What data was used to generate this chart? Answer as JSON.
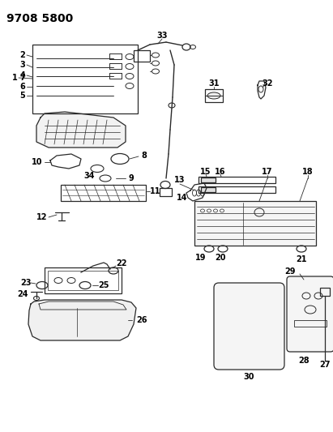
{
  "title": "9708 5800",
  "bg_color": "#ffffff",
  "lc": "#2a2a2a",
  "label_color": "#000000",
  "title_fontsize": 10,
  "label_fontsize": 7,
  "fig_width": 4.11,
  "fig_height": 5.33,
  "dpi": 100
}
